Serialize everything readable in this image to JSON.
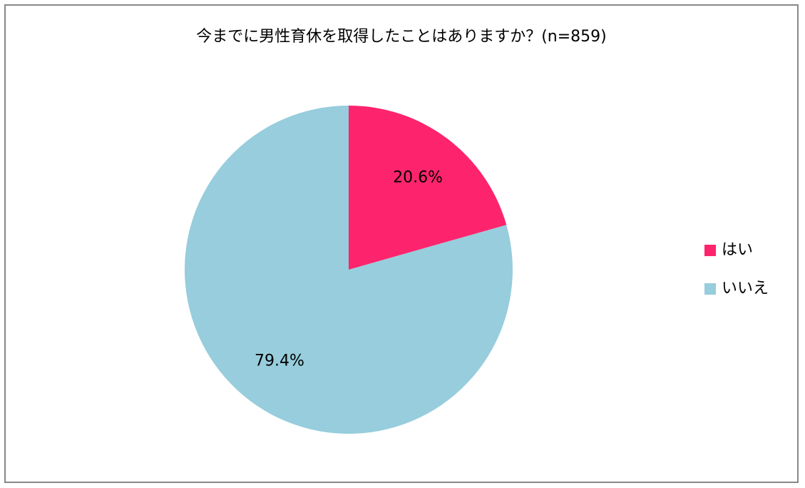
{
  "chart_data": {
    "type": "pie",
    "title": "今までに男性育休を取得したことはありますか？(n=859)",
    "categories": [
      "はい",
      "いいえ"
    ],
    "values": [
      20.6,
      79.4
    ],
    "value_labels": [
      "20.6%",
      "79.4%"
    ],
    "colors": [
      "#fd246d",
      "#97cddc"
    ],
    "legend": "right"
  }
}
